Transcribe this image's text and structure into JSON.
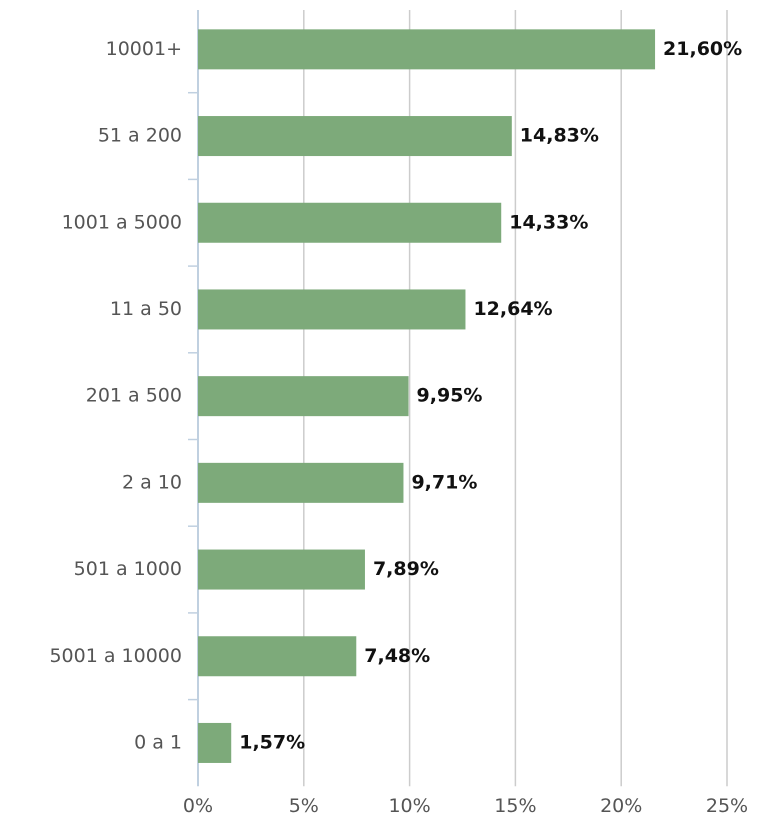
{
  "chart_data": {
    "type": "bar",
    "categories": [
      "10001+",
      "51 a 200",
      "1001 a 5000",
      "11 a 50",
      "201 a 500",
      "2 a 10",
      "501 a 1000",
      "5001 a 10000",
      "0 a 1"
    ],
    "values": [
      21.6,
      14.83,
      14.33,
      12.64,
      9.95,
      9.71,
      7.89,
      7.48,
      1.57
    ],
    "value_labels": [
      "21,60%",
      "14,83%",
      "14,33%",
      "12,64%",
      "9,95%",
      "9,71%",
      "7,89%",
      "7,48%",
      "1,57%"
    ],
    "color": "#7daa7a",
    "xlim": [
      0,
      25
    ],
    "xticks": [
      {
        "value": 0,
        "label": "0%"
      },
      {
        "value": 5,
        "label": "5%"
      },
      {
        "value": 10,
        "label": "10%"
      },
      {
        "value": 15,
        "label": "15%"
      },
      {
        "value": 20,
        "label": "20%"
      },
      {
        "value": 25,
        "label": "25%"
      }
    ],
    "grid": true
  }
}
